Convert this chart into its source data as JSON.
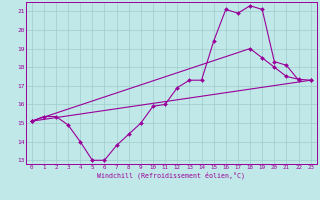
{
  "xlabel": "Windchill (Refroidissement éolien,°C)",
  "background_color": "#c0e8e8",
  "grid_color": "#a0cccc",
  "line_color": "#990099",
  "xlim": [
    -0.5,
    23.5
  ],
  "ylim": [
    12.8,
    21.5
  ],
  "xtick_labels": [
    "0",
    "1",
    "2",
    "3",
    "4",
    "5",
    "6",
    "7",
    "8",
    "9",
    "10",
    "11",
    "12",
    "13",
    "14",
    "15",
    "16",
    "17",
    "18",
    "19",
    "20",
    "21",
    "22",
    "23"
  ],
  "ytick_labels": [
    "13",
    "14",
    "15",
    "16",
    "17",
    "18",
    "19",
    "20",
    "21"
  ],
  "yticks": [
    13,
    14,
    15,
    16,
    17,
    18,
    19,
    20,
    21
  ],
  "line1_x": [
    0,
    1,
    2,
    3,
    4,
    5,
    6,
    7,
    8,
    9,
    10,
    11,
    12,
    13,
    14,
    15,
    16,
    17,
    18,
    19,
    20,
    21,
    22
  ],
  "line1_y": [
    15.1,
    15.35,
    15.35,
    14.9,
    14.0,
    13.0,
    13.0,
    13.8,
    14.4,
    15.0,
    15.9,
    16.0,
    16.9,
    17.3,
    17.3,
    19.4,
    21.1,
    20.9,
    21.3,
    21.1,
    18.3,
    18.1,
    17.3
  ],
  "line2_x": [
    0,
    23
  ],
  "line2_y": [
    15.1,
    17.3
  ],
  "line3_x": [
    0,
    18,
    19,
    20,
    21,
    22,
    23
  ],
  "line3_y": [
    15.1,
    19.0,
    18.5,
    18.0,
    17.5,
    17.35,
    17.3
  ]
}
